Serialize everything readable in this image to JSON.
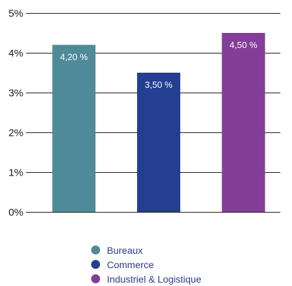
{
  "chart_data": {
    "type": "bar",
    "categories": [
      "Bureaux",
      "Commerce",
      "Industriel & Logistique"
    ],
    "values": [
      4.2,
      3.5,
      4.5
    ],
    "data_labels": [
      "4,20 %",
      "3,50 %",
      "4,50 %"
    ],
    "colors": [
      "#4f8a98",
      "#243f92",
      "#843e98"
    ],
    "yticks": [
      {
        "value": 0,
        "label": "0%"
      },
      {
        "value": 1,
        "label": "1%"
      },
      {
        "value": 2,
        "label": "2%"
      },
      {
        "value": 3,
        "label": "3%"
      },
      {
        "value": 4,
        "label": "4%"
      },
      {
        "value": 5,
        "label": "5%"
      }
    ],
    "ylim": [
      0,
      5
    ],
    "grid": true,
    "legend_position": "bottom",
    "legend": [
      {
        "label": "Bureaux",
        "color": "#4f8a98"
      },
      {
        "label": "Commerce",
        "color": "#243f92"
      },
      {
        "label": "Industriel & Logistique",
        "color": "#843e98"
      }
    ]
  }
}
